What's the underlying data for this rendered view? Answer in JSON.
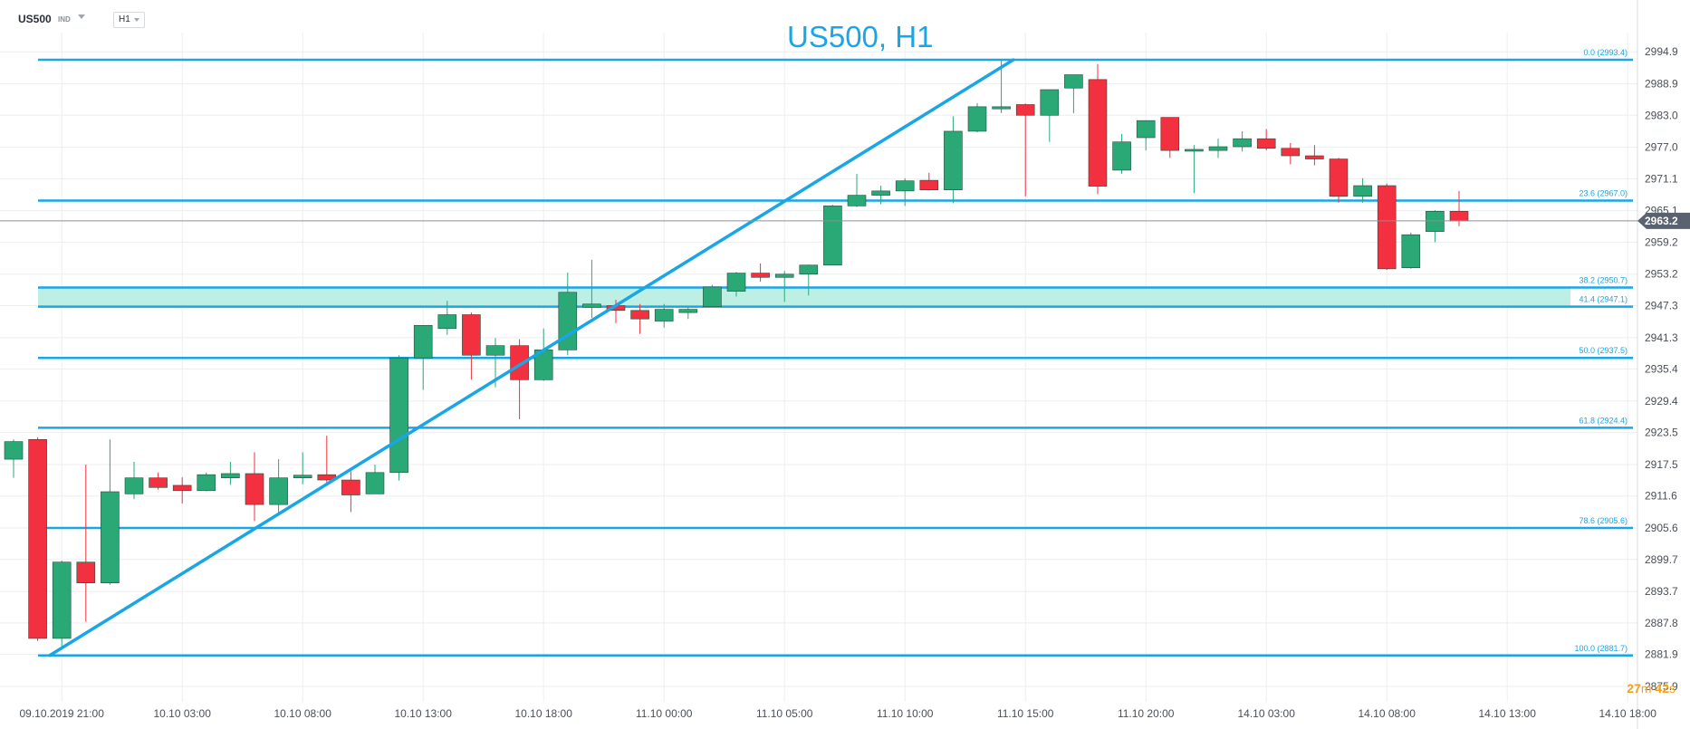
{
  "header": {
    "symbol": "US500",
    "instrument_type": "IND",
    "timeframe": "H1"
  },
  "countdown": {
    "minutes": "27",
    "min_unit": "m",
    "seconds": "42",
    "sec_unit": "s"
  },
  "chart_data": {
    "type": "candlestick",
    "title": "US500, H1",
    "ylim": [
      2873.0,
      2998.5
    ],
    "y_ticks": [
      "2994.9",
      "2988.9",
      "2983.0",
      "2977.0",
      "2971.1",
      "2965.1",
      "2959.2",
      "2953.2",
      "2947.3",
      "2941.3",
      "2935.4",
      "2929.4",
      "2923.5",
      "2917.5",
      "2911.6",
      "2905.6",
      "2899.7",
      "2893.7",
      "2887.8",
      "2881.9",
      "2875.9"
    ],
    "x_ticks": [
      "09.10.2019  21:00",
      "10.10  03:00",
      "10.10  08:00",
      "10.10  13:00",
      "10.10  18:00",
      "11.10  00:00",
      "11.10  05:00",
      "11.10  10:00",
      "11.10  15:00",
      "11.10  20:00",
      "14.10  03:00",
      "14.10  08:00",
      "14.10  13:00",
      "14.10  18:00"
    ],
    "current_price": "2963.2",
    "colors": {
      "up": "#2aa876",
      "down": "#f2303f",
      "fib": "#1aa6e6",
      "zone": "#b3ece0",
      "grid": "#eceef1"
    },
    "fibonacci_levels": [
      {
        "label": "0.0 (2993.4)",
        "price": 2993.4
      },
      {
        "label": "23.6 (2967.0)",
        "price": 2967.0
      },
      {
        "label": "38.2 (2950.7)",
        "price": 2950.7
      },
      {
        "label": "41.4 (2947.1)",
        "price": 2947.1
      },
      {
        "label": "50.0 (2937.5)",
        "price": 2937.5
      },
      {
        "label": "61.8 (2924.4)",
        "price": 2924.4
      },
      {
        "label": "78.6 (2905.6)",
        "price": 2905.6
      },
      {
        "label": "100.0 (2881.7)",
        "price": 2881.7
      }
    ],
    "highlight_zone": {
      "from": 2947.1,
      "to": 2950.7
    },
    "trendline": {
      "from": {
        "bar": 1.5,
        "price": 2881.7
      },
      "to": {
        "bar": 41.5,
        "price": 2993.4
      }
    },
    "candles": [
      {
        "o": 2918.5,
        "h": 2922.2,
        "l": 2915.0,
        "c": 2921.8
      },
      {
        "o": 2922.2,
        "h": 2922.6,
        "l": 2884.4,
        "c": 2884.9
      },
      {
        "o": 2884.9,
        "h": 2899.5,
        "l": 2883.1,
        "c": 2899.2
      },
      {
        "o": 2899.2,
        "h": 2917.5,
        "l": 2888.0,
        "c": 2895.3
      },
      {
        "o": 2895.3,
        "h": 2922.2,
        "l": 2895.0,
        "c": 2912.4
      },
      {
        "o": 2912.0,
        "h": 2918.0,
        "l": 2911.0,
        "c": 2915.0
      },
      {
        "o": 2915.0,
        "h": 2916.0,
        "l": 2912.8,
        "c": 2913.2
      },
      {
        "o": 2913.6,
        "h": 2915.1,
        "l": 2910.2,
        "c": 2912.6
      },
      {
        "o": 2912.6,
        "h": 2916.0,
        "l": 2912.5,
        "c": 2915.6
      },
      {
        "o": 2915.0,
        "h": 2918.0,
        "l": 2913.7,
        "c": 2915.8
      },
      {
        "o": 2915.8,
        "h": 2919.8,
        "l": 2906.9,
        "c": 2910.0
      },
      {
        "o": 2910.0,
        "h": 2918.5,
        "l": 2908.0,
        "c": 2915.0
      },
      {
        "o": 2915.0,
        "h": 2919.8,
        "l": 2913.8,
        "c": 2915.5
      },
      {
        "o": 2915.6,
        "h": 2922.9,
        "l": 2914.0,
        "c": 2914.6
      },
      {
        "o": 2914.6,
        "h": 2916.2,
        "l": 2908.6,
        "c": 2911.8
      },
      {
        "o": 2912.0,
        "h": 2917.5,
        "l": 2912.0,
        "c": 2916.0
      },
      {
        "o": 2916.0,
        "h": 2938.0,
        "l": 2914.5,
        "c": 2937.5
      },
      {
        "o": 2937.5,
        "h": 2943.6,
        "l": 2931.5,
        "c": 2943.6
      },
      {
        "o": 2943.0,
        "h": 2948.2,
        "l": 2941.8,
        "c": 2945.6
      },
      {
        "o": 2945.6,
        "h": 2946.0,
        "l": 2933.4,
        "c": 2938.0
      },
      {
        "o": 2938.0,
        "h": 2941.2,
        "l": 2932.0,
        "c": 2939.8
      },
      {
        "o": 2939.8,
        "h": 2941.0,
        "l": 2926.0,
        "c": 2933.4
      },
      {
        "o": 2933.4,
        "h": 2943.0,
        "l": 2933.2,
        "c": 2939.0
      },
      {
        "o": 2939.0,
        "h": 2953.5,
        "l": 2938.0,
        "c": 2949.8
      },
      {
        "o": 2947.0,
        "h": 2955.9,
        "l": 2945.0,
        "c": 2947.6
      },
      {
        "o": 2947.3,
        "h": 2948.4,
        "l": 2944.0,
        "c": 2946.4
      },
      {
        "o": 2946.4,
        "h": 2947.6,
        "l": 2942.0,
        "c": 2944.8
      },
      {
        "o": 2944.4,
        "h": 2947.6,
        "l": 2943.2,
        "c": 2946.6
      },
      {
        "o": 2946.0,
        "h": 2947.1,
        "l": 2944.8,
        "c": 2946.6
      },
      {
        "o": 2947.1,
        "h": 2951.2,
        "l": 2947.0,
        "c": 2950.8
      },
      {
        "o": 2950.0,
        "h": 2953.6,
        "l": 2949.0,
        "c": 2953.4
      },
      {
        "o": 2953.4,
        "h": 2955.2,
        "l": 2951.8,
        "c": 2952.6
      },
      {
        "o": 2952.6,
        "h": 2953.8,
        "l": 2948.0,
        "c": 2953.2
      },
      {
        "o": 2953.2,
        "h": 2955.0,
        "l": 2949.2,
        "c": 2954.9
      },
      {
        "o": 2954.9,
        "h": 2966.2,
        "l": 2954.9,
        "c": 2966.0
      },
      {
        "o": 2966.0,
        "h": 2972.0,
        "l": 2965.8,
        "c": 2968.0
      },
      {
        "o": 2968.0,
        "h": 2969.8,
        "l": 2966.3,
        "c": 2968.8
      },
      {
        "o": 2968.8,
        "h": 2971.2,
        "l": 2966.0,
        "c": 2970.7
      },
      {
        "o": 2970.8,
        "h": 2972.2,
        "l": 2968.9,
        "c": 2969.0
      },
      {
        "o": 2969.0,
        "h": 2982.8,
        "l": 2966.5,
        "c": 2980.0
      },
      {
        "o": 2980.0,
        "h": 2985.3,
        "l": 2979.8,
        "c": 2984.6
      },
      {
        "o": 2984.2,
        "h": 2993.4,
        "l": 2983.4,
        "c": 2984.6
      },
      {
        "o": 2985.0,
        "h": 2985.2,
        "l": 2967.8,
        "c": 2983.0
      },
      {
        "o": 2983.0,
        "h": 2987.8,
        "l": 2978.0,
        "c": 2987.8
      },
      {
        "o": 2988.1,
        "h": 2990.6,
        "l": 2983.4,
        "c": 2990.6
      },
      {
        "o": 2989.7,
        "h": 2992.6,
        "l": 2968.2,
        "c": 2969.7
      },
      {
        "o": 2972.7,
        "h": 2979.5,
        "l": 2972.0,
        "c": 2978.0
      },
      {
        "o": 2978.8,
        "h": 2982.0,
        "l": 2976.4,
        "c": 2982.0
      },
      {
        "o": 2982.6,
        "h": 2982.6,
        "l": 2975.0,
        "c": 2976.4
      },
      {
        "o": 2976.4,
        "h": 2977.4,
        "l": 2968.4,
        "c": 2976.6
      },
      {
        "o": 2976.4,
        "h": 2978.6,
        "l": 2975.0,
        "c": 2977.1
      },
      {
        "o": 2977.1,
        "h": 2980.0,
        "l": 2976.2,
        "c": 2978.6
      },
      {
        "o": 2978.6,
        "h": 2980.4,
        "l": 2976.4,
        "c": 2976.8
      },
      {
        "o": 2976.8,
        "h": 2977.8,
        "l": 2973.8,
        "c": 2975.4
      },
      {
        "o": 2975.4,
        "h": 2977.4,
        "l": 2973.6,
        "c": 2974.8
      },
      {
        "o": 2974.8,
        "h": 2975.0,
        "l": 2966.6,
        "c": 2967.8
      },
      {
        "o": 2967.8,
        "h": 2971.2,
        "l": 2966.6,
        "c": 2969.8
      },
      {
        "o": 2969.8,
        "h": 2970.2,
        "l": 2954.0,
        "c": 2954.2
      },
      {
        "o": 2954.4,
        "h": 2961.0,
        "l": 2954.2,
        "c": 2960.6
      },
      {
        "o": 2961.2,
        "h": 2965.2,
        "l": 2959.2,
        "c": 2965.0
      },
      {
        "o": 2965.0,
        "h": 2968.8,
        "l": 2962.2,
        "c": 2963.2
      }
    ]
  }
}
